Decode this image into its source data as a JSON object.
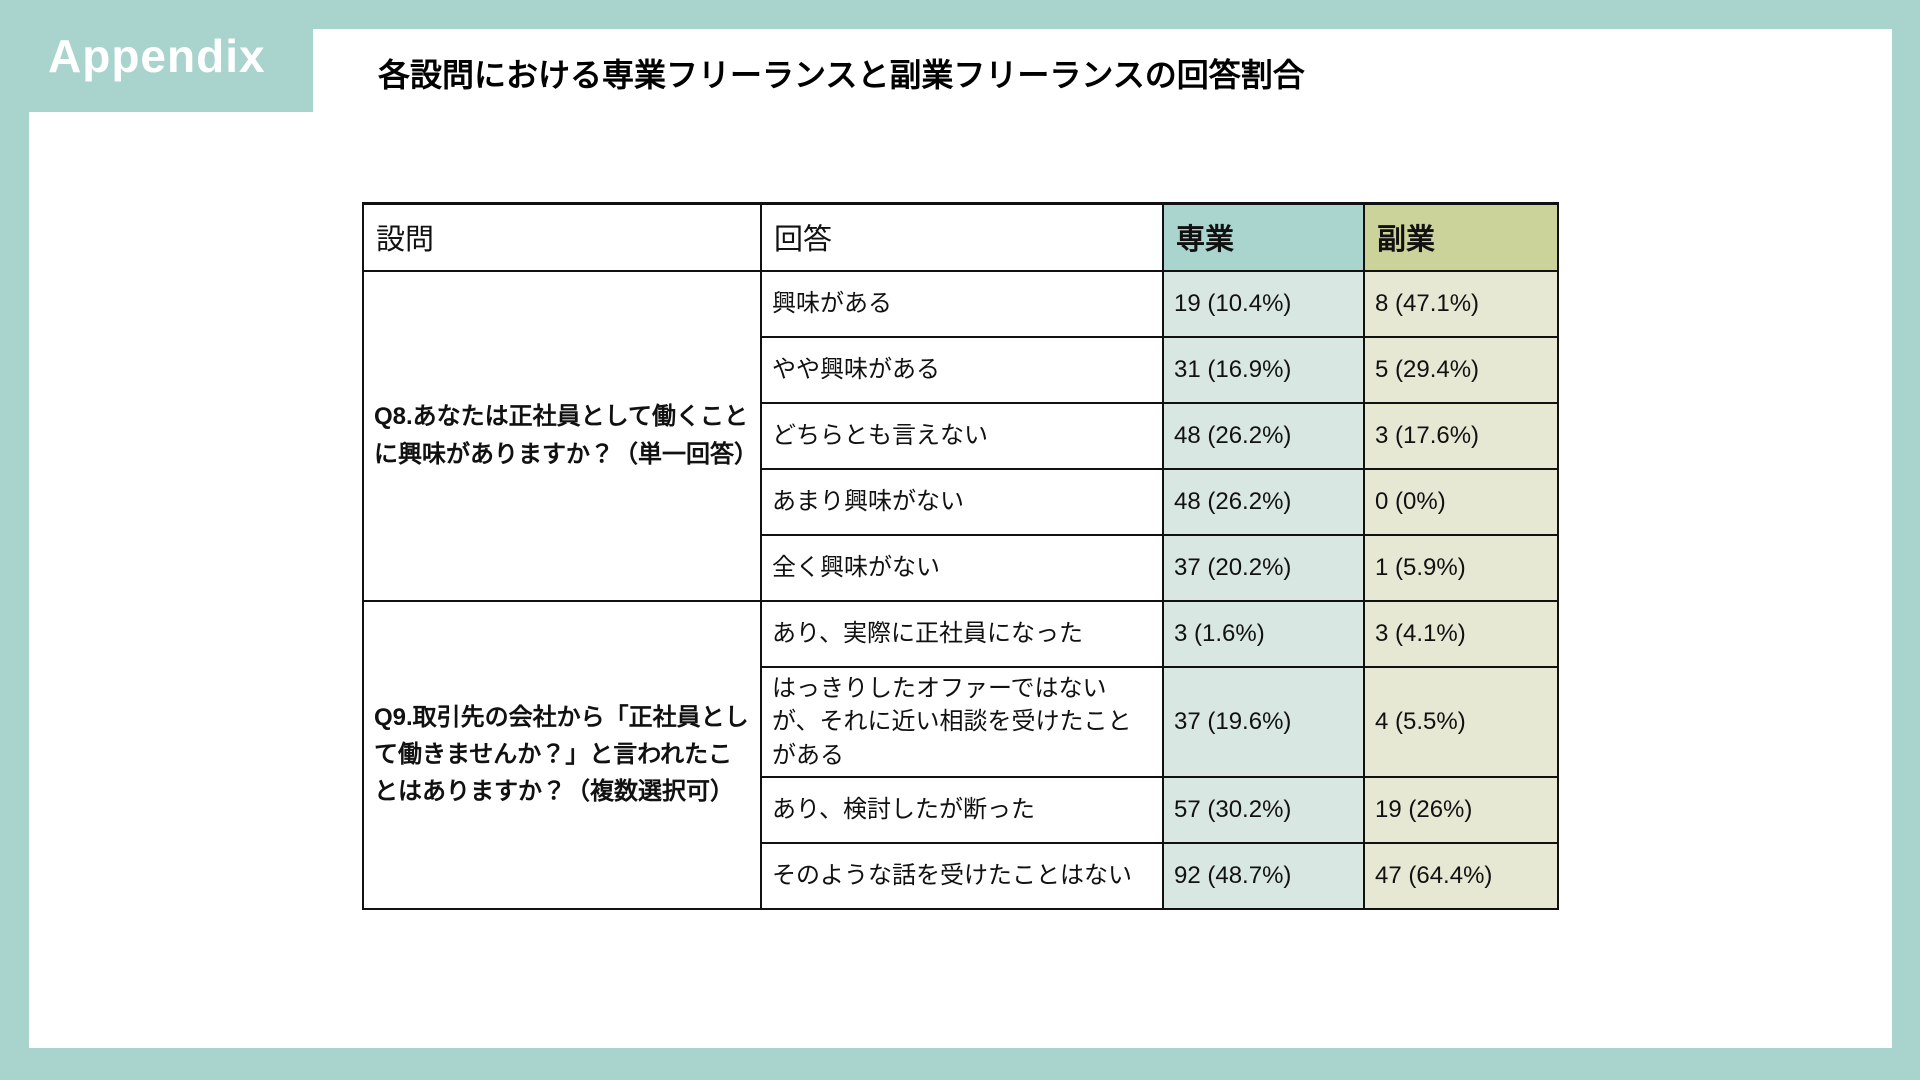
{
  "slide": {
    "badge": "Appendix",
    "title": "各設問における専業フリーランスと副業フリーランスの回答割合"
  },
  "colors": {
    "frame": "#a9d3cd",
    "fulltime_header": "#a9d5ce",
    "sidejob_header": "#cbd39b",
    "fulltime_cell": "#d9e7e3",
    "sidejob_cell": "#e6e8d4",
    "border": "#111111"
  },
  "table": {
    "headers": {
      "question": "設問",
      "answer": "回答",
      "fulltime": "専業",
      "sidejob": "副業"
    },
    "groups": [
      {
        "question": "Q8.あなたは正社員として働くことに興味がありますか？（単一回答）",
        "rows": [
          {
            "answer": "興味がある",
            "fulltime": "19 (10.4%)",
            "sidejob": "8 (47.1%)"
          },
          {
            "answer": "やや興味がある",
            "fulltime": "31 (16.9%)",
            "sidejob": "5 (29.4%)"
          },
          {
            "answer": "どちらとも言えない",
            "fulltime": "48 (26.2%)",
            "sidejob": "3 (17.6%)"
          },
          {
            "answer": "あまり興味がない",
            "fulltime": "48 (26.2%)",
            "sidejob": "0 (0%)"
          },
          {
            "answer": "全く興味がない",
            "fulltime": "37 (20.2%)",
            "sidejob": "1 (5.9%)"
          }
        ]
      },
      {
        "question": "Q9.取引先の会社から「正社員として働きませんか？」と言われたことはありますか？（複数選択可）",
        "rows": [
          {
            "answer": "あり、実際に正社員になった",
            "fulltime": "3 (1.6%)",
            "sidejob": "3 (4.1%)"
          },
          {
            "answer": "はっきりしたオファーではないが、それに近い相談を受けたことがある",
            "fulltime": "37 (19.6%)",
            "sidejob": "4 (5.5%)",
            "tall": true
          },
          {
            "answer": "あり、検討したが断った",
            "fulltime": "57 (30.2%)",
            "sidejob": "19 (26%)"
          },
          {
            "answer": "そのような話を受けたことはない",
            "fulltime": "92 (48.7%)",
            "sidejob": "47 (64.4%)"
          }
        ]
      }
    ]
  }
}
